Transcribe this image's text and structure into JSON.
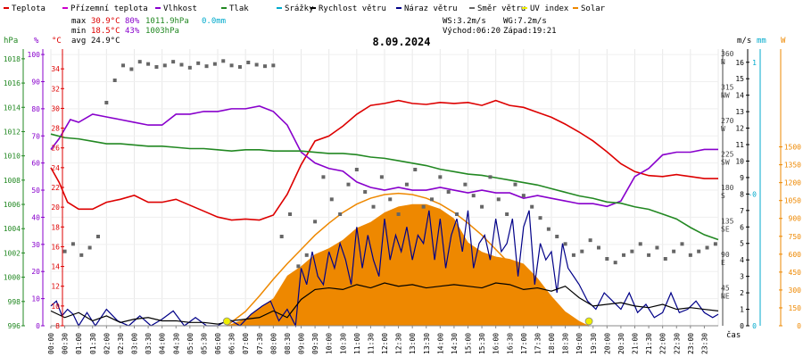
{
  "legend": [
    {
      "label": "Teplota",
      "color": "#dd0000"
    },
    {
      "label": "Přízemní teplota",
      "color": "#cc00cc"
    },
    {
      "label": "Vlhkost",
      "color": "#8800cc"
    },
    {
      "label": "Tlak",
      "color": "#228822"
    },
    {
      "label": "Srážky",
      "color": "#00aacc"
    },
    {
      "label": "Rychlost větru",
      "color": "#000000"
    },
    {
      "label": "Náraz větru",
      "color": "#000088"
    },
    {
      "label": "Směr větru",
      "color": "#666666"
    },
    {
      "label": "UV index",
      "color": "#eeee00"
    },
    {
      "label": "Solar",
      "color": "#ee8800"
    }
  ],
  "stats": {
    "max_label": "max",
    "max_temp": "30.9°C",
    "max_hum": "80%",
    "max_press": "1011.9hPa",
    "max_rain": "0.0mm",
    "min_label": "min",
    "min_temp": "18.5°C",
    "min_hum": "43%",
    "min_press": "1003hPa",
    "avg_label": "avg",
    "avg_temp": "24.9°C"
  },
  "wind": {
    "ws": "WS:3.2m/s",
    "wg": "WG:7.2m/s",
    "sunrise": "Východ:06:20",
    "sunset": "Západ:19:21"
  },
  "title": "8.09.2024",
  "axis_labels": {
    "hpa": "hPa",
    "pct": "%",
    "degc": "°C",
    "ms1": "m/s",
    "mm": "mm",
    "w": "W",
    "cas": "čas"
  },
  "colors": {
    "temp": "#dd0000",
    "hum": "#8800cc",
    "press": "#228822",
    "gust": "#000088",
    "speed": "#000000",
    "dir": "#666666",
    "solar": "#ee8800",
    "uv": "#eeee00",
    "rain": "#00aacc"
  },
  "chart_data": {
    "type": "line",
    "x_unit": "hour",
    "xlim": [
      0,
      24
    ],
    "x_ticks": [
      "00:00",
      "00:30",
      "01:00",
      "01:30",
      "02:00",
      "02:30",
      "03:00",
      "03:30",
      "04:00",
      "04:30",
      "05:00",
      "05:30",
      "06:00",
      "06:30",
      "07:00",
      "07:30",
      "08:00",
      "08:30",
      "09:00",
      "09:30",
      "10:00",
      "10:30",
      "11:00",
      "11:30",
      "12:00",
      "12:30",
      "13:00",
      "13:30",
      "14:00",
      "14:30",
      "15:00",
      "15:30",
      "16:00",
      "16:30",
      "17:00",
      "17:30",
      "18:00",
      "18:30",
      "19:00",
      "19:30",
      "20:00",
      "20:30",
      "21:00",
      "21:30",
      "22:00",
      "22:30",
      "23:00",
      "23:30"
    ],
    "axes": {
      "pressure": {
        "ticks": [
          996,
          998,
          1000,
          1002,
          1004,
          1006,
          1008,
          1010,
          1012,
          1014,
          1016,
          1018
        ],
        "lim": [
          996,
          1018.8
        ]
      },
      "humidity": {
        "ticks": [
          0,
          10,
          20,
          30,
          40,
          50,
          60,
          70,
          80,
          90,
          100
        ],
        "lim": [
          0,
          102
        ]
      },
      "temperature": {
        "ticks": [
          8,
          10,
          12,
          14,
          16,
          18,
          20,
          22,
          24,
          26,
          28,
          30,
          32,
          34
        ],
        "lim": [
          8,
          36
        ]
      },
      "direction": {
        "ticks": [
          {
            "deg": 45,
            "label": "45",
            "dir": "NE"
          },
          {
            "deg": 90,
            "label": "90",
            "dir": "E"
          },
          {
            "deg": 135,
            "label": "135",
            "dir": "SE"
          },
          {
            "deg": 180,
            "label": "180",
            "dir": "S"
          },
          {
            "deg": 225,
            "label": "225",
            "dir": "SW"
          },
          {
            "deg": 270,
            "label": "270",
            "dir": "W"
          },
          {
            "deg": 315,
            "label": "315",
            "dir": "NW"
          },
          {
            "deg": 360,
            "label": "360",
            "dir": "N"
          }
        ],
        "lim": [
          0,
          372
        ]
      },
      "wind": {
        "ticks": [
          0,
          1,
          2,
          3,
          4,
          5,
          6,
          7,
          8,
          9,
          10,
          11,
          12,
          13,
          14,
          15,
          16
        ],
        "lim": [
          0,
          16.8
        ]
      },
      "rain": {
        "ticks": [
          {
            "v": 0,
            "label": "0"
          },
          {
            "v": 0.5,
            "label": "-0"
          },
          {
            "v": 1,
            "label": "1"
          }
        ],
        "lim": [
          0,
          1.05
        ]
      },
      "solar": {
        "ticks": [
          0,
          150,
          300,
          450,
          600,
          750,
          900,
          1050,
          1200,
          1350,
          1500
        ],
        "lim": [
          0,
          2320
        ]
      }
    },
    "series": [
      {
        "name": "Teplota",
        "axis": "temperature",
        "x": [
          0,
          0.3,
          0.6,
          1,
          1.5,
          2,
          2.5,
          3,
          3.5,
          4,
          4.5,
          5,
          5.5,
          6,
          6.5,
          7,
          7.5,
          8,
          8.5,
          9,
          9.5,
          10,
          10.5,
          11,
          11.5,
          12,
          12.5,
          13,
          13.5,
          14,
          14.5,
          15,
          15.5,
          16,
          16.5,
          17,
          17.5,
          18,
          18.5,
          19,
          19.5,
          20,
          20.5,
          21,
          21.5,
          22,
          22.5,
          23,
          23.5,
          24
        ],
        "y": [
          24,
          22.5,
          20.5,
          19.8,
          19.8,
          20.5,
          20.8,
          21.2,
          20.5,
          20.5,
          20.8,
          20.2,
          19.6,
          19,
          18.7,
          18.8,
          18.7,
          19.2,
          21.3,
          24.3,
          26.7,
          27.2,
          28.2,
          29.4,
          30.3,
          30.5,
          30.8,
          30.5,
          30.4,
          30.6,
          30.5,
          30.6,
          30.3,
          30.8,
          30.3,
          30.1,
          29.6,
          29.1,
          28.4,
          27.6,
          26.7,
          25.6,
          24.4,
          23.6,
          23.2,
          23.1,
          23.3,
          23.1,
          22.9,
          22.9
        ]
      },
      {
        "name": "Vlhkost",
        "axis": "humidity",
        "x": [
          0,
          0.3,
          0.7,
          1,
          1.5,
          2,
          2.5,
          3,
          3.5,
          4,
          4.5,
          5,
          5.5,
          6,
          6.5,
          7,
          7.5,
          8,
          8.5,
          9,
          9.5,
          10,
          10.5,
          11,
          11.5,
          12,
          12.5,
          13,
          13.5,
          14,
          14.5,
          15,
          15.5,
          16,
          16.5,
          17,
          17.5,
          18,
          18.5,
          19,
          19.5,
          20,
          20.5,
          21,
          21.5,
          22,
          22.5,
          23,
          23.5,
          24
        ],
        "y": [
          65,
          69,
          76,
          75,
          78,
          77,
          76,
          75,
          74,
          74,
          78,
          78,
          79,
          79,
          80,
          80,
          81,
          79,
          74,
          64,
          60,
          58,
          57,
          53,
          51,
          50,
          51,
          50,
          50,
          51,
          50,
          49,
          50,
          49,
          49,
          47,
          48,
          47,
          46,
          45,
          45,
          44,
          46,
          55,
          58,
          63,
          64,
          64,
          65,
          65
        ]
      },
      {
        "name": "Tlak",
        "axis": "pressure",
        "x": [
          0,
          0.5,
          1,
          1.5,
          2,
          2.5,
          3,
          3.5,
          4,
          4.5,
          5,
          5.5,
          6,
          6.5,
          7,
          7.5,
          8,
          8.5,
          9,
          9.5,
          10,
          10.5,
          11,
          11.5,
          12,
          12.5,
          13,
          13.5,
          14,
          14.5,
          15,
          15.5,
          16,
          16.5,
          17,
          17.5,
          18,
          18.5,
          19,
          19.5,
          20,
          20.5,
          21,
          21.5,
          22,
          22.5,
          23,
          23.5,
          24
        ],
        "y": [
          1011.8,
          1011.5,
          1011.4,
          1011.2,
          1011.0,
          1011.0,
          1010.9,
          1010.8,
          1010.8,
          1010.7,
          1010.6,
          1010.6,
          1010.5,
          1010.4,
          1010.5,
          1010.5,
          1010.4,
          1010.4,
          1010.4,
          1010.3,
          1010.2,
          1010.2,
          1010.1,
          1009.9,
          1009.8,
          1009.6,
          1009.4,
          1009.2,
          1008.9,
          1008.7,
          1008.5,
          1008.4,
          1008.2,
          1008,
          1007.8,
          1007.6,
          1007.3,
          1007.0,
          1006.7,
          1006.5,
          1006.2,
          1006.1,
          1005.8,
          1005.6,
          1005.2,
          1004.8,
          1004.1,
          1003.5,
          1003.1
        ]
      },
      {
        "name": "Náraz větru",
        "axis": "wind",
        "x": [
          0,
          0.2,
          0.4,
          0.6,
          0.8,
          1,
          1.3,
          1.6,
          2,
          2.4,
          2.8,
          3.2,
          3.6,
          4,
          4.4,
          4.8,
          5.2,
          5.6,
          6,
          6.4,
          6.8,
          7.2,
          7.6,
          7.9,
          8.2,
          8.5,
          8.8,
          9,
          9.2,
          9.4,
          9.6,
          9.8,
          10,
          10.2,
          10.4,
          10.6,
          10.8,
          11,
          11.2,
          11.4,
          11.6,
          11.8,
          12,
          12.2,
          12.4,
          12.6,
          12.8,
          13,
          13.2,
          13.4,
          13.6,
          13.8,
          14,
          14.2,
          14.4,
          14.6,
          14.8,
          15,
          15.2,
          15.4,
          15.6,
          15.8,
          16,
          16.2,
          16.4,
          16.6,
          16.8,
          17,
          17.2,
          17.4,
          17.6,
          17.8,
          18,
          18.2,
          18.4,
          18.6,
          18.8,
          19,
          19.3,
          19.6,
          19.9,
          20.2,
          20.5,
          20.8,
          21.1,
          21.4,
          21.7,
          22,
          22.3,
          22.6,
          22.9,
          23.2,
          23.5,
          23.8,
          24
        ],
        "y": [
          1.2,
          1.5,
          0.6,
          1.0,
          0.7,
          0,
          0.8,
          0,
          1.0,
          0.3,
          0,
          0.6,
          0,
          0.4,
          0.9,
          0,
          0.5,
          0,
          0,
          0.4,
          0,
          0.7,
          1.2,
          1.5,
          0.3,
          1.0,
          0,
          3.5,
          2.5,
          4.5,
          3,
          2.5,
          4.5,
          3.5,
          5,
          4,
          2.5,
          6,
          3.5,
          5.5,
          4,
          3,
          6.5,
          4,
          5.5,
          4.5,
          6,
          4,
          5.5,
          5,
          7,
          4,
          6.5,
          3.5,
          5.5,
          6.5,
          4.5,
          7,
          3.5,
          5,
          5.5,
          4,
          6.5,
          4.5,
          5,
          6.5,
          3,
          6,
          7,
          2.5,
          5,
          4,
          4.5,
          2,
          5,
          3.5,
          3,
          2.5,
          1.5,
          1,
          2,
          1.5,
          1,
          2,
          0.8,
          1.3,
          0.5,
          0.8,
          2.0,
          0.8,
          1.0,
          1.5,
          0.8,
          0.5,
          0.7
        ]
      },
      {
        "name": "Rychlost větru",
        "axis": "wind",
        "x": [
          0,
          0.5,
          1,
          1.5,
          2,
          2.5,
          3,
          3.5,
          4,
          4.5,
          5,
          5.5,
          6,
          6.5,
          7,
          7.5,
          8,
          8.5,
          9,
          9.5,
          10,
          10.5,
          11,
          11.5,
          12,
          12.5,
          13,
          13.5,
          14,
          14.5,
          15,
          15.5,
          16,
          16.5,
          17,
          17.5,
          18,
          18.5,
          19,
          19.5,
          20,
          20.5,
          21,
          21.5,
          22,
          22.5,
          23,
          23.5,
          24
        ],
        "y": [
          0.9,
          0.5,
          0.8,
          0.3,
          0.6,
          0.2,
          0.4,
          0.5,
          0.3,
          0.3,
          0.2,
          0.2,
          0.1,
          0.3,
          0.4,
          0.5,
          0.9,
          0.5,
          1.6,
          2.2,
          2.3,
          2.2,
          2.5,
          2.3,
          2.6,
          2.4,
          2.5,
          2.3,
          2.4,
          2.5,
          2.4,
          2.3,
          2.6,
          2.5,
          2.2,
          2.3,
          2.1,
          2.4,
          1.7,
          1.2,
          1.3,
          1.4,
          1.2,
          1.1,
          1.3,
          1.0,
          1.1,
          1.0,
          0.9
        ]
      },
      {
        "name": "Směr větru",
        "axis": "direction",
        "type": "scatter",
        "x": [
          0.5,
          0.8,
          1.1,
          1.4,
          1.7,
          2,
          2.3,
          2.6,
          2.9,
          3.2,
          3.5,
          3.8,
          4.1,
          4.4,
          4.7,
          5,
          5.3,
          5.6,
          5.9,
          6.2,
          6.5,
          6.8,
          7.1,
          7.4,
          7.7,
          8,
          8.3,
          8.6,
          8.9,
          9.2,
          9.5,
          9.8,
          10.1,
          10.4,
          10.7,
          11,
          11.3,
          11.6,
          11.9,
          12.2,
          12.5,
          12.8,
          13.1,
          13.4,
          13.7,
          14,
          14.3,
          14.6,
          14.9,
          15.2,
          15.5,
          15.8,
          16.1,
          16.4,
          16.7,
          17,
          17.3,
          17.6,
          17.9,
          18.2,
          18.5,
          18.8,
          19.1,
          19.4,
          19.7,
          20,
          20.3,
          20.6,
          20.9,
          21.2,
          21.5,
          21.8,
          22.1,
          22.4,
          22.7,
          23,
          23.3,
          23.6,
          23.9
        ],
        "y": [
          100,
          110,
          95,
          105,
          120,
          300,
          330,
          350,
          345,
          355,
          352,
          348,
          350,
          355,
          351,
          347,
          353,
          349,
          352,
          356,
          350,
          348,
          354,
          351,
          349,
          350,
          120,
          150,
          80,
          95,
          140,
          200,
          170,
          150,
          190,
          210,
          180,
          160,
          200,
          170,
          150,
          190,
          210,
          160,
          170,
          200,
          180,
          150,
          190,
          175,
          160,
          200,
          170,
          150,
          190,
          175,
          160,
          145,
          130,
          120,
          110,
          95,
          100,
          115,
          105,
          90,
          85,
          95,
          100,
          110,
          95,
          105,
          90,
          100,
          110,
          95,
          100,
          105,
          110
        ]
      }
    ],
    "solar": {
      "name": "Solar",
      "axis": "solar",
      "x": [
        6.33,
        7,
        7.5,
        8,
        8.5,
        9,
        9.5,
        10,
        10.5,
        11,
        11.5,
        12,
        12.5,
        13,
        13.5,
        14,
        14.5,
        15,
        15.5,
        16,
        16.5,
        17,
        17.5,
        18,
        18.5,
        19,
        19.35
      ],
      "y_clear": [
        0,
        120,
        250,
        390,
        520,
        640,
        760,
        860,
        950,
        1020,
        1070,
        1100,
        1110,
        1100,
        1070,
        1020,
        950,
        860,
        760,
        640,
        520,
        390,
        250,
        120,
        50,
        10,
        0
      ],
      "y": [
        0,
        60,
        150,
        230,
        420,
        500,
        600,
        650,
        720,
        820,
        870,
        950,
        1000,
        1020,
        1020,
        980,
        900,
        700,
        620,
        580,
        560,
        520,
        400,
        250,
        120,
        40,
        0
      ]
    },
    "uv_markers": [
      {
        "x": 6.33,
        "y": 0
      },
      {
        "x": 19.35,
        "y": 0
      }
    ]
  }
}
